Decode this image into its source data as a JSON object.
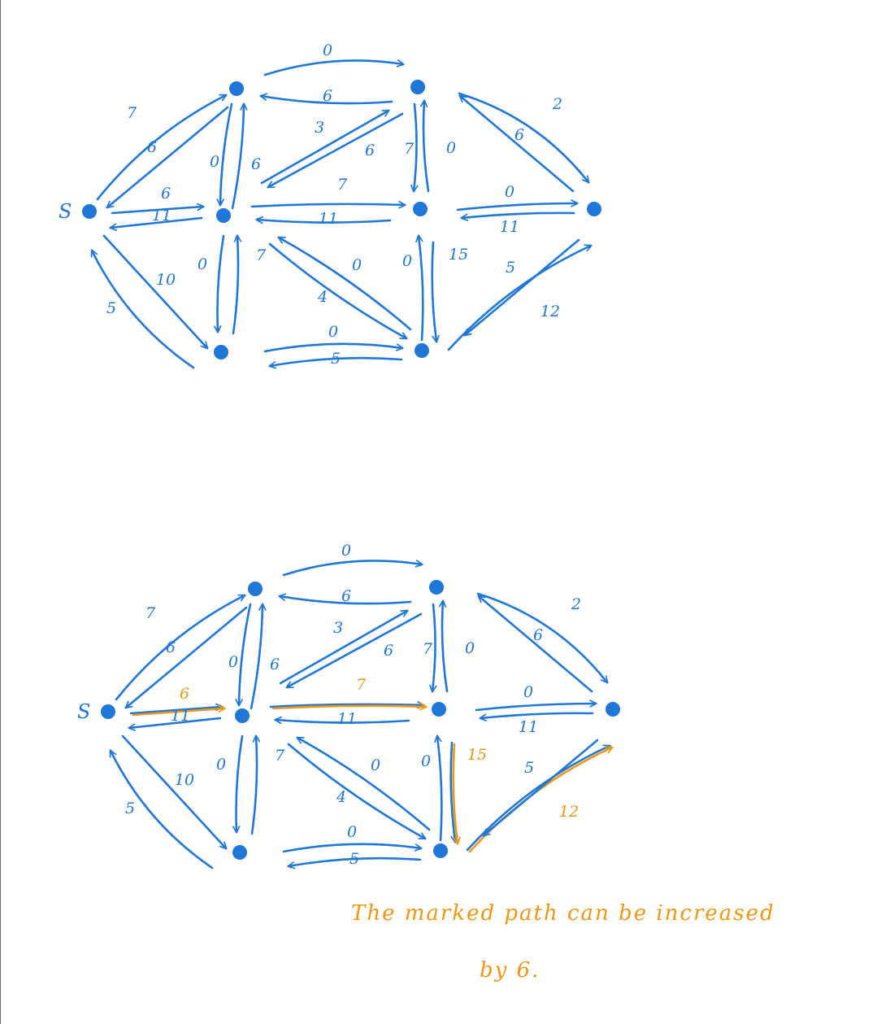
{
  "colors": {
    "ink": "#1f78d8",
    "highlight": "#f0960f",
    "background": "#ffffff"
  },
  "graph_top": {
    "source_label": "S",
    "edge_labels": {
      "s_a_fwd": "7",
      "s_a_back": "6",
      "s_b_fwd": "6",
      "s_b_back": "11",
      "s_c_fwd": "10",
      "s_c_back": "5",
      "a_d_fwd": "0",
      "a_d_back": "6",
      "a_b_fwd": "0",
      "a_b_back": "6",
      "b_d_fwd": "3",
      "b_d_back": "6",
      "b_e_fwd": "7",
      "b_e_back": "11",
      "b_c_fwd": "0",
      "b_c_back": "7",
      "f_b_fwd": "0",
      "f_b_back": "4",
      "d_e_fwd": "0",
      "d_e_back": "7",
      "d_t_fwd": "2",
      "d_t_back": "6",
      "e_t_fwd": "0",
      "e_t_back": "11",
      "e_f_fwd": "15",
      "e_f_back": "0",
      "c_f_fwd": "0",
      "c_f_back": "5",
      "f_t_fwd": "12",
      "f_t_back": "5"
    }
  },
  "graph_bottom": {
    "source_label": "S",
    "edge_labels": {
      "s_a_fwd": "7",
      "s_a_back": "6",
      "s_b_fwd": "6",
      "s_b_back": "11",
      "s_c_fwd": "10",
      "s_c_back": "5",
      "a_d_fwd": "0",
      "a_d_back": "6",
      "a_b_fwd": "0",
      "a_b_back": "6",
      "b_d_fwd": "3",
      "b_d_back": "6",
      "b_e_fwd": "7",
      "b_e_back": "11",
      "b_c_fwd": "0",
      "b_c_back": "7",
      "f_b_fwd": "0",
      "f_b_back": "4",
      "d_e_fwd": "0",
      "d_e_back": "7",
      "d_t_fwd": "2",
      "d_t_back": "6",
      "e_t_fwd": "0",
      "e_t_back": "11",
      "e_f_fwd": "15",
      "e_f_back": "0",
      "c_f_fwd": "0",
      "c_f_back": "5",
      "f_t_fwd": "12",
      "f_t_back": "5"
    },
    "highlighted_path": [
      "s_b_fwd",
      "b_e_fwd",
      "e_f_fwd",
      "f_t_fwd"
    ]
  },
  "note": {
    "line1": "The marked path can be increased",
    "line2": "by 6."
  }
}
